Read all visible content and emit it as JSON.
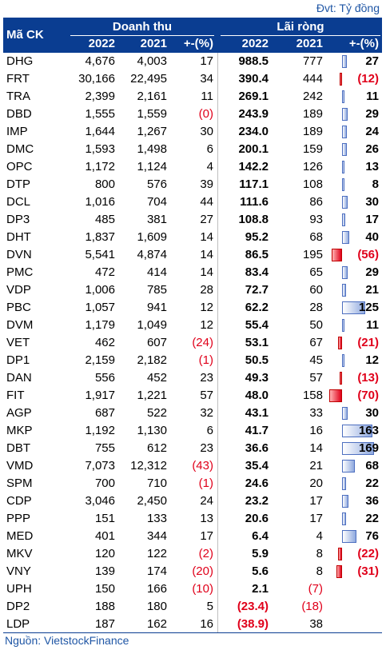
{
  "unit_label": "Đvt: Tỷ đồng",
  "source": "Nguồn: VietstockFinance",
  "header": {
    "code": "Mã CK",
    "revenue": "Doanh thu",
    "profit": "Lãi ròng",
    "y2022": "2022",
    "y2021": "2021",
    "change": "+-(%)"
  },
  "colors": {
    "header_bg": "#0a3d91",
    "negative": "#e0001a",
    "pos_bar": "#8fa9df",
    "neg_bar": "#e0001a"
  },
  "rows": [
    {
      "code": "DHG",
      "r22": "4,676",
      "r21": "4,003",
      "rpc": "17",
      "p22": "988.5",
      "p21": "777",
      "ppc": "27",
      "ppc_val": 27
    },
    {
      "code": "FRT",
      "r22": "30,166",
      "r21": "22,495",
      "rpc": "34",
      "p22": "390.4",
      "p21": "444",
      "ppc": "(12)",
      "ppc_val": -12
    },
    {
      "code": "TRA",
      "r22": "2,399",
      "r21": "2,161",
      "rpc": "11",
      "p22": "269.1",
      "p21": "242",
      "ppc": "11",
      "ppc_val": 11
    },
    {
      "code": "DBD",
      "r22": "1,555",
      "r21": "1,559",
      "rpc": "(0)",
      "p22": "243.9",
      "p21": "189",
      "ppc": "29",
      "ppc_val": 29
    },
    {
      "code": "IMP",
      "r22": "1,644",
      "r21": "1,267",
      "rpc": "30",
      "p22": "234.0",
      "p21": "189",
      "ppc": "24",
      "ppc_val": 24
    },
    {
      "code": "DMC",
      "r22": "1,593",
      "r21": "1,498",
      "rpc": "6",
      "p22": "200.1",
      "p21": "159",
      "ppc": "26",
      "ppc_val": 26
    },
    {
      "code": "OPC",
      "r22": "1,172",
      "r21": "1,124",
      "rpc": "4",
      "p22": "142.2",
      "p21": "126",
      "ppc": "13",
      "ppc_val": 13
    },
    {
      "code": "DTP",
      "r22": "800",
      "r21": "576",
      "rpc": "39",
      "p22": "117.1",
      "p21": "108",
      "ppc": "8",
      "ppc_val": 8
    },
    {
      "code": "DCL",
      "r22": "1,016",
      "r21": "704",
      "rpc": "44",
      "p22": "111.6",
      "p21": "86",
      "ppc": "30",
      "ppc_val": 30
    },
    {
      "code": "DP3",
      "r22": "485",
      "r21": "381",
      "rpc": "27",
      "p22": "108.8",
      "p21": "93",
      "ppc": "17",
      "ppc_val": 17
    },
    {
      "code": "DHT",
      "r22": "1,837",
      "r21": "1,609",
      "rpc": "14",
      "p22": "95.2",
      "p21": "68",
      "ppc": "40",
      "ppc_val": 40
    },
    {
      "code": "DVN",
      "r22": "5,541",
      "r21": "4,874",
      "rpc": "14",
      "p22": "86.5",
      "p21": "195",
      "ppc": "(56)",
      "ppc_val": -56
    },
    {
      "code": "PMC",
      "r22": "472",
      "r21": "414",
      "rpc": "14",
      "p22": "83.4",
      "p21": "65",
      "ppc": "29",
      "ppc_val": 29
    },
    {
      "code": "VDP",
      "r22": "1,006",
      "r21": "785",
      "rpc": "28",
      "p22": "72.7",
      "p21": "60",
      "ppc": "21",
      "ppc_val": 21
    },
    {
      "code": "PBC",
      "r22": "1,057",
      "r21": "941",
      "rpc": "12",
      "p22": "62.2",
      "p21": "28",
      "ppc": "125",
      "ppc_val": 125
    },
    {
      "code": "DVM",
      "r22": "1,179",
      "r21": "1,049",
      "rpc": "12",
      "p22": "55.4",
      "p21": "50",
      "ppc": "11",
      "ppc_val": 11
    },
    {
      "code": "VET",
      "r22": "462",
      "r21": "607",
      "rpc": "(24)",
      "p22": "53.1",
      "p21": "67",
      "ppc": "(21)",
      "ppc_val": -21
    },
    {
      "code": "DP1",
      "r22": "2,159",
      "r21": "2,182",
      "rpc": "(1)",
      "p22": "50.5",
      "p21": "45",
      "ppc": "12",
      "ppc_val": 12
    },
    {
      "code": "DAN",
      "r22": "556",
      "r21": "452",
      "rpc": "23",
      "p22": "49.3",
      "p21": "57",
      "ppc": "(13)",
      "ppc_val": -13
    },
    {
      "code": "FIT",
      "r22": "1,917",
      "r21": "1,221",
      "rpc": "57",
      "p22": "48.0",
      "p21": "158",
      "ppc": "(70)",
      "ppc_val": -70
    },
    {
      "code": "AGP",
      "r22": "687",
      "r21": "522",
      "rpc": "32",
      "p22": "43.1",
      "p21": "33",
      "ppc": "30",
      "ppc_val": 30
    },
    {
      "code": "MKP",
      "r22": "1,192",
      "r21": "1,130",
      "rpc": "6",
      "p22": "41.7",
      "p21": "16",
      "ppc": "163",
      "ppc_val": 163
    },
    {
      "code": "DBT",
      "r22": "755",
      "r21": "612",
      "rpc": "23",
      "p22": "36.6",
      "p21": "14",
      "ppc": "169",
      "ppc_val": 169
    },
    {
      "code": "VMD",
      "r22": "7,073",
      "r21": "12,312",
      "rpc": "(43)",
      "p22": "35.4",
      "p21": "21",
      "ppc": "68",
      "ppc_val": 68
    },
    {
      "code": "SPM",
      "r22": "700",
      "r21": "710",
      "rpc": "(1)",
      "p22": "24.6",
      "p21": "20",
      "ppc": "22",
      "ppc_val": 22
    },
    {
      "code": "CDP",
      "r22": "3,046",
      "r21": "2,450",
      "rpc": "24",
      "p22": "23.2",
      "p21": "17",
      "ppc": "36",
      "ppc_val": 36
    },
    {
      "code": "PPP",
      "r22": "151",
      "r21": "133",
      "rpc": "13",
      "p22": "20.6",
      "p21": "17",
      "ppc": "22",
      "ppc_val": 22
    },
    {
      "code": "MED",
      "r22": "401",
      "r21": "344",
      "rpc": "17",
      "p22": "6.4",
      "p21": "4",
      "ppc": "76",
      "ppc_val": 76
    },
    {
      "code": "MKV",
      "r22": "120",
      "r21": "122",
      "rpc": "(2)",
      "p22": "5.9",
      "p21": "8",
      "ppc": "(22)",
      "ppc_val": -22
    },
    {
      "code": "VNY",
      "r22": "139",
      "r21": "174",
      "rpc": "(20)",
      "p22": "5.6",
      "p21": "8",
      "ppc": "(31)",
      "ppc_val": -31
    },
    {
      "code": "UPH",
      "r22": "150",
      "r21": "166",
      "rpc": "(10)",
      "p22": "2.1",
      "p21": "(7)",
      "ppc": "",
      "ppc_val": null
    },
    {
      "code": "DP2",
      "r22": "188",
      "r21": "180",
      "rpc": "5",
      "p22": "(23.4)",
      "p21": "(18)",
      "ppc": "",
      "ppc_val": null
    },
    {
      "code": "LDP",
      "r22": "187",
      "r21": "162",
      "rpc": "16",
      "p22": "(38.9)",
      "p21": "38",
      "ppc": "",
      "ppc_val": null
    }
  ]
}
